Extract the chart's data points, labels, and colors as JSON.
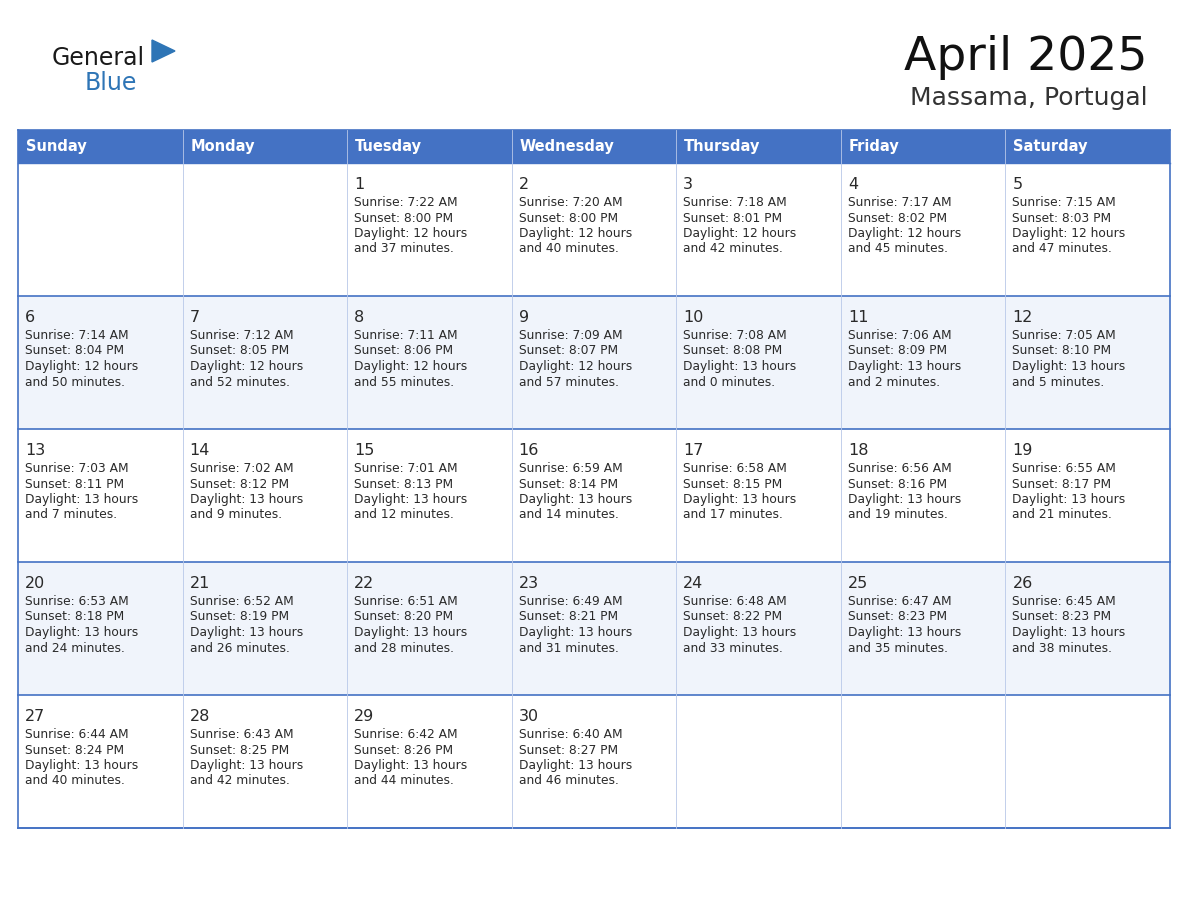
{
  "title": "April 2025",
  "subtitle": "Massama, Portugal",
  "header_bg": "#4472C4",
  "header_text_color": "#FFFFFF",
  "cell_bg_even": "#FFFFFF",
  "cell_bg_alt": "#F0F4FB",
  "cell_border_color": "#4472C4",
  "cell_border_light": "#B8C8E8",
  "days_of_week": [
    "Sunday",
    "Monday",
    "Tuesday",
    "Wednesday",
    "Thursday",
    "Friday",
    "Saturday"
  ],
  "logo_text1": "General",
  "logo_text2": "Blue",
  "logo_color1": "#1a1a1a",
  "logo_color2": "#2E75B6",
  "logo_tri_color": "#2E75B6",
  "calendar": [
    [
      {
        "day": "",
        "sunrise": "",
        "sunset": "",
        "daylight_line1": "",
        "daylight_line2": ""
      },
      {
        "day": "",
        "sunrise": "",
        "sunset": "",
        "daylight_line1": "",
        "daylight_line2": ""
      },
      {
        "day": "1",
        "sunrise": "7:22 AM",
        "sunset": "8:00 PM",
        "daylight_line1": "12 hours",
        "daylight_line2": "and 37 minutes."
      },
      {
        "day": "2",
        "sunrise": "7:20 AM",
        "sunset": "8:00 PM",
        "daylight_line1": "12 hours",
        "daylight_line2": "and 40 minutes."
      },
      {
        "day": "3",
        "sunrise": "7:18 AM",
        "sunset": "8:01 PM",
        "daylight_line1": "12 hours",
        "daylight_line2": "and 42 minutes."
      },
      {
        "day": "4",
        "sunrise": "7:17 AM",
        "sunset": "8:02 PM",
        "daylight_line1": "12 hours",
        "daylight_line2": "and 45 minutes."
      },
      {
        "day": "5",
        "sunrise": "7:15 AM",
        "sunset": "8:03 PM",
        "daylight_line1": "12 hours",
        "daylight_line2": "and 47 minutes."
      }
    ],
    [
      {
        "day": "6",
        "sunrise": "7:14 AM",
        "sunset": "8:04 PM",
        "daylight_line1": "12 hours",
        "daylight_line2": "and 50 minutes."
      },
      {
        "day": "7",
        "sunrise": "7:12 AM",
        "sunset": "8:05 PM",
        "daylight_line1": "12 hours",
        "daylight_line2": "and 52 minutes."
      },
      {
        "day": "8",
        "sunrise": "7:11 AM",
        "sunset": "8:06 PM",
        "daylight_line1": "12 hours",
        "daylight_line2": "and 55 minutes."
      },
      {
        "day": "9",
        "sunrise": "7:09 AM",
        "sunset": "8:07 PM",
        "daylight_line1": "12 hours",
        "daylight_line2": "and 57 minutes."
      },
      {
        "day": "10",
        "sunrise": "7:08 AM",
        "sunset": "8:08 PM",
        "daylight_line1": "13 hours",
        "daylight_line2": "and 0 minutes."
      },
      {
        "day": "11",
        "sunrise": "7:06 AM",
        "sunset": "8:09 PM",
        "daylight_line1": "13 hours",
        "daylight_line2": "and 2 minutes."
      },
      {
        "day": "12",
        "sunrise": "7:05 AM",
        "sunset": "8:10 PM",
        "daylight_line1": "13 hours",
        "daylight_line2": "and 5 minutes."
      }
    ],
    [
      {
        "day": "13",
        "sunrise": "7:03 AM",
        "sunset": "8:11 PM",
        "daylight_line1": "13 hours",
        "daylight_line2": "and 7 minutes."
      },
      {
        "day": "14",
        "sunrise": "7:02 AM",
        "sunset": "8:12 PM",
        "daylight_line1": "13 hours",
        "daylight_line2": "and 9 minutes."
      },
      {
        "day": "15",
        "sunrise": "7:01 AM",
        "sunset": "8:13 PM",
        "daylight_line1": "13 hours",
        "daylight_line2": "and 12 minutes."
      },
      {
        "day": "16",
        "sunrise": "6:59 AM",
        "sunset": "8:14 PM",
        "daylight_line1": "13 hours",
        "daylight_line2": "and 14 minutes."
      },
      {
        "day": "17",
        "sunrise": "6:58 AM",
        "sunset": "8:15 PM",
        "daylight_line1": "13 hours",
        "daylight_line2": "and 17 minutes."
      },
      {
        "day": "18",
        "sunrise": "6:56 AM",
        "sunset": "8:16 PM",
        "daylight_line1": "13 hours",
        "daylight_line2": "and 19 minutes."
      },
      {
        "day": "19",
        "sunrise": "6:55 AM",
        "sunset": "8:17 PM",
        "daylight_line1": "13 hours",
        "daylight_line2": "and 21 minutes."
      }
    ],
    [
      {
        "day": "20",
        "sunrise": "6:53 AM",
        "sunset": "8:18 PM",
        "daylight_line1": "13 hours",
        "daylight_line2": "and 24 minutes."
      },
      {
        "day": "21",
        "sunrise": "6:52 AM",
        "sunset": "8:19 PM",
        "daylight_line1": "13 hours",
        "daylight_line2": "and 26 minutes."
      },
      {
        "day": "22",
        "sunrise": "6:51 AM",
        "sunset": "8:20 PM",
        "daylight_line1": "13 hours",
        "daylight_line2": "and 28 minutes."
      },
      {
        "day": "23",
        "sunrise": "6:49 AM",
        "sunset": "8:21 PM",
        "daylight_line1": "13 hours",
        "daylight_line2": "and 31 minutes."
      },
      {
        "day": "24",
        "sunrise": "6:48 AM",
        "sunset": "8:22 PM",
        "daylight_line1": "13 hours",
        "daylight_line2": "and 33 minutes."
      },
      {
        "day": "25",
        "sunrise": "6:47 AM",
        "sunset": "8:23 PM",
        "daylight_line1": "13 hours",
        "daylight_line2": "and 35 minutes."
      },
      {
        "day": "26",
        "sunrise": "6:45 AM",
        "sunset": "8:23 PM",
        "daylight_line1": "13 hours",
        "daylight_line2": "and 38 minutes."
      }
    ],
    [
      {
        "day": "27",
        "sunrise": "6:44 AM",
        "sunset": "8:24 PM",
        "daylight_line1": "13 hours",
        "daylight_line2": "and 40 minutes."
      },
      {
        "day": "28",
        "sunrise": "6:43 AM",
        "sunset": "8:25 PM",
        "daylight_line1": "13 hours",
        "daylight_line2": "and 42 minutes."
      },
      {
        "day": "29",
        "sunrise": "6:42 AM",
        "sunset": "8:26 PM",
        "daylight_line1": "13 hours",
        "daylight_line2": "and 44 minutes."
      },
      {
        "day": "30",
        "sunrise": "6:40 AM",
        "sunset": "8:27 PM",
        "daylight_line1": "13 hours",
        "daylight_line2": "and 46 minutes."
      },
      {
        "day": "",
        "sunrise": "",
        "sunset": "",
        "daylight_line1": "",
        "daylight_line2": ""
      },
      {
        "day": "",
        "sunrise": "",
        "sunset": "",
        "daylight_line1": "",
        "daylight_line2": ""
      },
      {
        "day": "",
        "sunrise": "",
        "sunset": "",
        "daylight_line1": "",
        "daylight_line2": ""
      }
    ]
  ]
}
